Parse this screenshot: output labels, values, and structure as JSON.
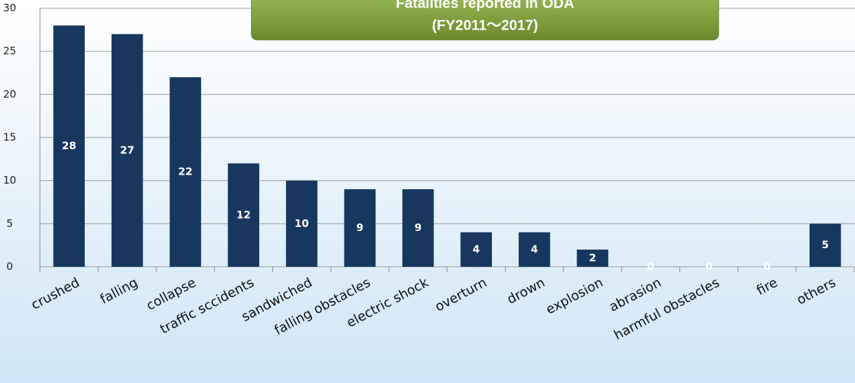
{
  "chart_data": {
    "type": "bar",
    "title": "Fatalities reported in ODA",
    "subtitle": "(FY2011～2017)",
    "categories": [
      "crushed",
      "falling",
      "collapse",
      "traffic sccidents",
      "sandwiched",
      "falling obstacles",
      "electric shock",
      "overturn",
      "drown",
      "explosion",
      "abrasion",
      "harmful obstacles",
      "fire",
      "others"
    ],
    "values": [
      28,
      27,
      22,
      12,
      10,
      9,
      9,
      4,
      4,
      2,
      0,
      0,
      0,
      5
    ],
    "color": "#17375e",
    "ylim": [
      0,
      30
    ],
    "yticks": [
      0,
      5,
      10,
      15,
      20,
      25,
      30
    ],
    "grid": true,
    "data_labels": true
  }
}
